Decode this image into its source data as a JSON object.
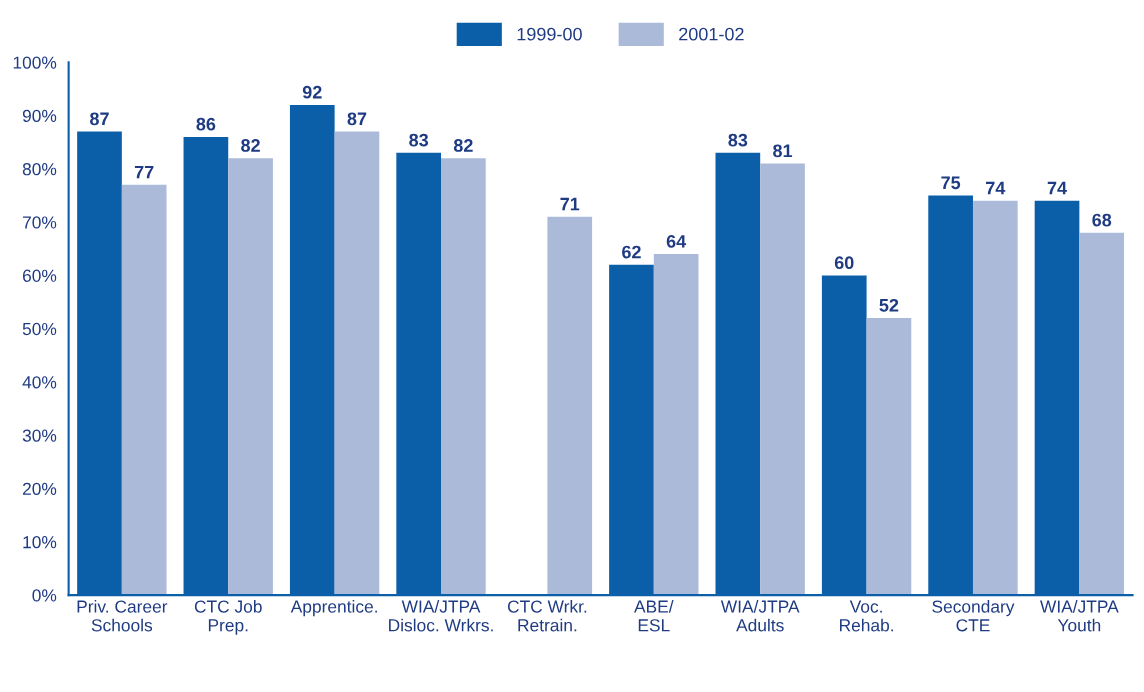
{
  "chart_data": {
    "type": "bar",
    "categories": [
      "Priv. Career\nSchools",
      "CTC Job\nPrep.",
      "Apprentice.",
      "WIA/JTPA\nDisloc. Wrkrs.",
      "CTC Wrkr.\nRetrain.",
      "ABE/\nESL",
      "WIA/JTPA\nAdults",
      "Voc.\nRehab.",
      "Secondary\nCTE",
      "WIA/JTPA\nYouth"
    ],
    "series": [
      {
        "name": "1999-00",
        "color": "#0a5fa8",
        "values": [
          87,
          86,
          92,
          83,
          null,
          62,
          83,
          60,
          75,
          74
        ]
      },
      {
        "name": "2001-02",
        "color": "#abbad9",
        "values": [
          77,
          82,
          87,
          82,
          71,
          64,
          81,
          52,
          74,
          68
        ]
      }
    ],
    "ylim": [
      0,
      100
    ],
    "yticks": [
      {
        "value": 0,
        "label": "0%"
      },
      {
        "value": 10,
        "label": "10%"
      },
      {
        "value": 20,
        "label": "20%"
      },
      {
        "value": 30,
        "label": "30%"
      },
      {
        "value": 40,
        "label": "40%"
      },
      {
        "value": 50,
        "label": "50%"
      },
      {
        "value": 60,
        "label": "60%"
      },
      {
        "value": 70,
        "label": "70%"
      },
      {
        "value": 80,
        "label": "80%"
      },
      {
        "value": 90,
        "label": "90%"
      },
      {
        "value": 100,
        "label": "100%"
      }
    ],
    "data_labels": true,
    "grid": false,
    "legend": "top"
  }
}
